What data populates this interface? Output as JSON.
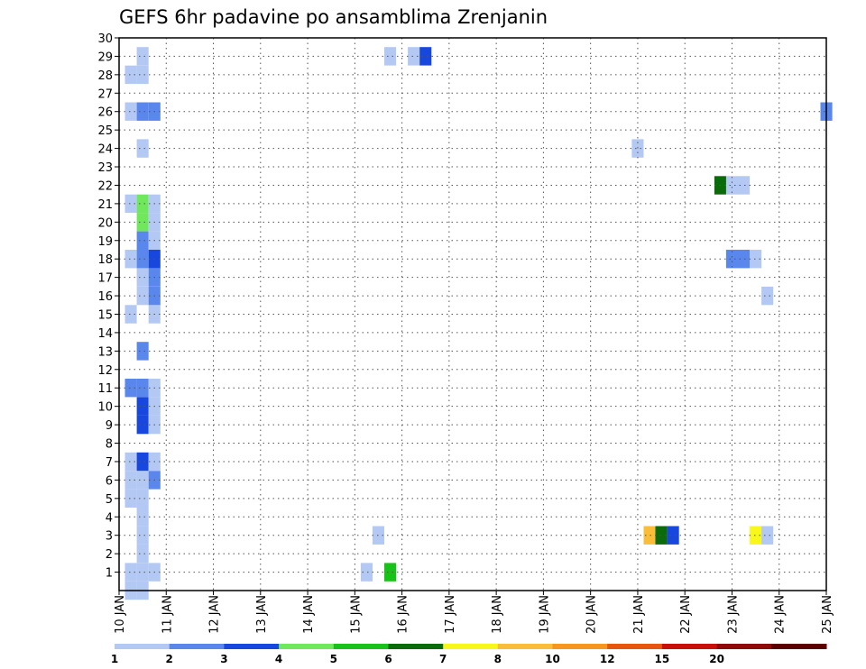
{
  "chart_data": {
    "type": "heatmap",
    "title": "GEFS 6hr padavine po ansamblima Zrenjanin",
    "xlabel": "",
    "ylabel": "",
    "x_ticks": [
      "10 JAN",
      "11 JAN",
      "12 JAN",
      "13 JAN",
      "14 JAN",
      "15 JAN",
      "16 JAN",
      "17 JAN",
      "18 JAN",
      "19 JAN",
      "20 JAN",
      "21 JAN",
      "22 JAN",
      "23 JAN",
      "24 JAN",
      "25 JAN"
    ],
    "xlim": [
      0,
      15
    ],
    "x_unit": "days since 10 JAN",
    "y_ticks": [
      1,
      2,
      3,
      4,
      5,
      6,
      7,
      8,
      9,
      10,
      11,
      12,
      13,
      14,
      15,
      16,
      17,
      18,
      19,
      20,
      21,
      22,
      23,
      24,
      25,
      26,
      27,
      28,
      29,
      30
    ],
    "ylim": [
      0,
      30
    ],
    "grid": true,
    "colorbar": {
      "levels": [
        "1",
        "2",
        "3",
        "4",
        "5",
        "6",
        "7",
        "8",
        "10",
        "12",
        "15",
        "20"
      ],
      "colors": [
        "#b4c8f4",
        "#5a87ec",
        "#1747dc",
        "#6fe85c",
        "#19c219",
        "#0b6b0b",
        "#f7f719",
        "#f9bd3a",
        "#f7961f",
        "#e8550e",
        "#c8100a",
        "#8d0a0a",
        "#5a0000"
      ]
    },
    "cells": [
      [
        0.25,
        0,
        1
      ],
      [
        0.5,
        0,
        1
      ],
      [
        0.25,
        1,
        1
      ],
      [
        0.5,
        1,
        1
      ],
      [
        0.75,
        1,
        1
      ],
      [
        0.5,
        2,
        1
      ],
      [
        0.5,
        3,
        1
      ],
      [
        0.5,
        4,
        1
      ],
      [
        0.25,
        5,
        1
      ],
      [
        0.5,
        5,
        1
      ],
      [
        0.25,
        6,
        1
      ],
      [
        0.5,
        6,
        1
      ],
      [
        0.75,
        6,
        2
      ],
      [
        0.25,
        7,
        1
      ],
      [
        0.5,
        7,
        3
      ],
      [
        0.75,
        7,
        1
      ],
      [
        0.25,
        11,
        2
      ],
      [
        0.5,
        11,
        2
      ],
      [
        0.75,
        11,
        1
      ],
      [
        0.5,
        10,
        3
      ],
      [
        0.75,
        10,
        1
      ],
      [
        0.5,
        9,
        3
      ],
      [
        0.75,
        9,
        1
      ],
      [
        0.5,
        13,
        2
      ],
      [
        0.25,
        15,
        1
      ],
      [
        0.75,
        15,
        1
      ],
      [
        0.5,
        16,
        1
      ],
      [
        0.75,
        16,
        2
      ],
      [
        0.5,
        17,
        1
      ],
      [
        0.75,
        17,
        2
      ],
      [
        0.25,
        18,
        1
      ],
      [
        0.5,
        18,
        2
      ],
      [
        0.75,
        18,
        3
      ],
      [
        0.5,
        19,
        2
      ],
      [
        0.75,
        19,
        1
      ],
      [
        0.5,
        20,
        4
      ],
      [
        0.75,
        20,
        1
      ],
      [
        0.25,
        21,
        1
      ],
      [
        0.5,
        21,
        4
      ],
      [
        0.75,
        21,
        1
      ],
      [
        0.5,
        24,
        1
      ],
      [
        0.25,
        26,
        1
      ],
      [
        0.5,
        26,
        2
      ],
      [
        0.75,
        26,
        2
      ],
      [
        0.25,
        28,
        1
      ],
      [
        0.5,
        28,
        1
      ],
      [
        0.5,
        29,
        1
      ],
      [
        5.25,
        1,
        1
      ],
      [
        5.5,
        3,
        1
      ],
      [
        5.75,
        1,
        5
      ],
      [
        5.75,
        29,
        1
      ],
      [
        6.25,
        29,
        1
      ],
      [
        6.5,
        29,
        3
      ],
      [
        11.0,
        24,
        1
      ],
      [
        11.25,
        3,
        8
      ],
      [
        11.5,
        3,
        6
      ],
      [
        11.75,
        3,
        3
      ],
      [
        12.75,
        22,
        6
      ],
      [
        13.0,
        22,
        1
      ],
      [
        13.25,
        22,
        1
      ],
      [
        13.0,
        18,
        2
      ],
      [
        13.25,
        18,
        2
      ],
      [
        13.5,
        18,
        1
      ],
      [
        13.75,
        16,
        1
      ],
      [
        13.5,
        3,
        7
      ],
      [
        13.75,
        3,
        1
      ],
      [
        15.0,
        26,
        2
      ]
    ]
  }
}
